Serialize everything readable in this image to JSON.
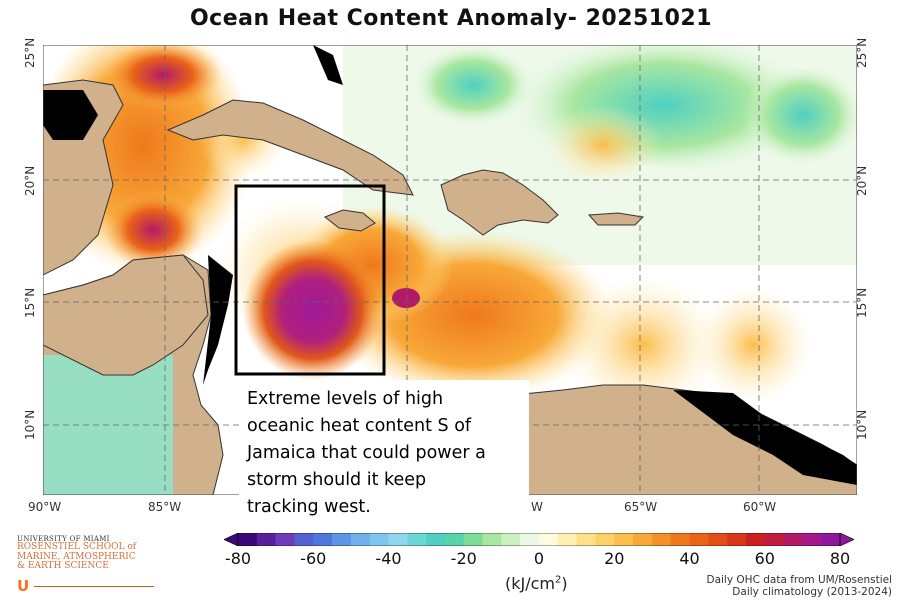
{
  "title": "Ocean Heat Content Anomaly- 20251021",
  "map": {
    "lat_labels": [
      "25°N",
      "20°N",
      "15°N",
      "10°N"
    ],
    "lon_labels": [
      "90°W",
      "85°W",
      "65°W",
      "60°W"
    ],
    "lon_label_partial": "W",
    "highlight_box": "region south of Jamaica"
  },
  "annotation": {
    "lines": [
      "Extreme levels of high",
      "oceanic heat content S of",
      "Jamaica that could power a",
      "storm should it keep",
      "tracking west."
    ]
  },
  "colorbar": {
    "tick_labels": [
      "-80",
      "-60",
      "-40",
      "-20",
      "0",
      "20",
      "40",
      "60",
      "80"
    ],
    "units_prefix": "(kJ/cm",
    "units_sup": "2",
    "units_suffix": ")",
    "colors": [
      "#3a0a78",
      "#5a1f9a",
      "#6d3cb8",
      "#5560d0",
      "#4d78dd",
      "#5a96e5",
      "#6db0ea",
      "#7fc6ee",
      "#8ed7ee",
      "#6ad8d4",
      "#4fd0c0",
      "#5bd3a8",
      "#7fdc98",
      "#a8e7a0",
      "#cdf0c2",
      "#ecf9e8",
      "#fffbe0",
      "#ffefb0",
      "#ffe08a",
      "#fed06a",
      "#fbbd4c",
      "#f8a838",
      "#f49028",
      "#ef781c",
      "#e96318",
      "#e24e16",
      "#d83818",
      "#cc2020",
      "#c01c40",
      "#b21a68",
      "#a4188a",
      "#8e189a"
    ]
  },
  "credits": {
    "line1": "Daily OHC data from UM/Rosenstiel",
    "line2": "Daily climatology (2013-2024)"
  },
  "logo": {
    "university": "UNIVERSITY OF MIAMI",
    "school_lines": [
      "ROSENSTIEL SCHOOL of",
      "MARINE, ATMOSPHERIC",
      "& EARTH SCIENCE"
    ],
    "mark": "U"
  }
}
